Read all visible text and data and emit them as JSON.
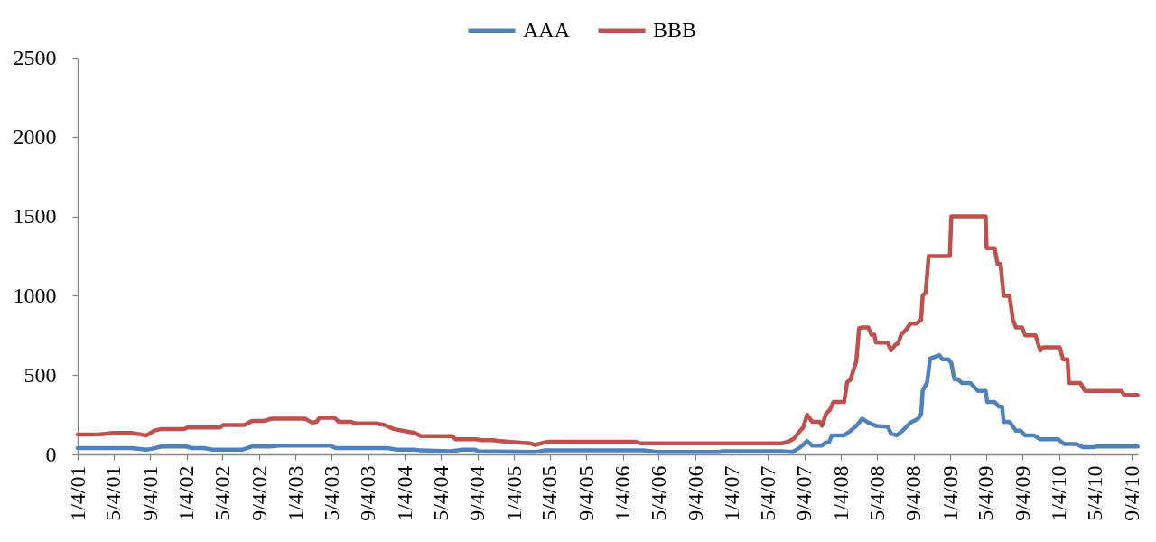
{
  "chart_data": {
    "type": "line",
    "legend": "top",
    "xlim": [
      "2001-01-04",
      "2010-09-25"
    ],
    "ylim": [
      0,
      2500
    ],
    "yticks": [
      0,
      500,
      1000,
      1500,
      2000,
      2500
    ],
    "xticks": [
      {
        "value": "2001-01-04",
        "label": "1/4/01"
      },
      {
        "value": "2001-05-04",
        "label": "5/4/01"
      },
      {
        "value": "2001-09-04",
        "label": "9/4/01"
      },
      {
        "value": "2002-01-04",
        "label": "1/4/02"
      },
      {
        "value": "2002-05-04",
        "label": "5/4/02"
      },
      {
        "value": "2002-09-04",
        "label": "9/4/02"
      },
      {
        "value": "2003-01-04",
        "label": "1/4/03"
      },
      {
        "value": "2003-05-04",
        "label": "5/4/03"
      },
      {
        "value": "2003-09-04",
        "label": "9/4/03"
      },
      {
        "value": "2004-01-04",
        "label": "1/4/04"
      },
      {
        "value": "2004-05-04",
        "label": "5/4/04"
      },
      {
        "value": "2004-09-04",
        "label": "9/4/04"
      },
      {
        "value": "2005-01-04",
        "label": "1/4/05"
      },
      {
        "value": "2005-05-04",
        "label": "5/4/05"
      },
      {
        "value": "2005-09-04",
        "label": "9/4/05"
      },
      {
        "value": "2006-01-04",
        "label": "1/4/06"
      },
      {
        "value": "2006-05-04",
        "label": "5/4/06"
      },
      {
        "value": "2006-09-04",
        "label": "9/4/06"
      },
      {
        "value": "2007-01-04",
        "label": "1/4/07"
      },
      {
        "value": "2007-05-04",
        "label": "5/4/07"
      },
      {
        "value": "2007-09-04",
        "label": "9/4/07"
      },
      {
        "value": "2008-01-04",
        "label": "1/4/08"
      },
      {
        "value": "2008-05-04",
        "label": "5/4/08"
      },
      {
        "value": "2008-09-04",
        "label": "9/4/08"
      },
      {
        "value": "2009-01-04",
        "label": "1/4/09"
      },
      {
        "value": "2009-05-04",
        "label": "5/4/09"
      },
      {
        "value": "2009-09-04",
        "label": "9/4/09"
      },
      {
        "value": "2010-01-04",
        "label": "1/4/10"
      },
      {
        "value": "2010-05-04",
        "label": "5/4/10"
      },
      {
        "value": "2010-09-04",
        "label": "9/4/10"
      }
    ],
    "series": [
      {
        "name": "AAA",
        "color": "#4f81bd",
        "x": [
          "2001-01-04",
          "2001-07-03",
          "2001-08-23",
          "2001-09-08",
          "2001-10-12",
          "2002-01-02",
          "2002-01-22",
          "2002-03-02",
          "2002-04-02",
          "2002-07-11",
          "2002-08-11",
          "2002-10-10",
          "2002-11-10",
          "2003-04-29",
          "2003-05-19",
          "2003-11-08",
          "2003-12-08",
          "2004-02-07",
          "2004-02-28",
          "2004-06-07",
          "2004-07-17",
          "2004-08-27",
          "2004-09-06",
          "2005-03-16",
          "2005-04-15",
          "2006-03-14",
          "2006-05-03",
          "2006-11-22",
          "2006-12-02",
          "2007-06-21",
          "2007-07-26",
          "2007-08-21",
          "2007-09-13",
          "2007-09-30",
          "2007-10-31",
          "2007-11-15",
          "2007-11-25",
          "2007-12-05",
          "2008-01-15",
          "2008-01-30",
          "2008-02-25",
          "2008-03-15",
          "2008-04-05",
          "2008-04-30",
          "2008-06-09",
          "2008-06-20",
          "2008-07-09",
          "2008-07-29",
          "2008-08-24",
          "2008-09-19",
          "2008-09-29",
          "2008-10-04",
          "2008-10-19",
          "2008-10-29",
          "2008-11-29",
          "2008-12-09",
          "2008-12-29",
          "2009-01-08",
          "2009-01-18",
          "2009-01-28",
          "2009-02-13",
          "2009-03-13",
          "2009-04-07",
          "2009-05-03",
          "2009-05-08",
          "2009-06-02",
          "2009-06-17",
          "2009-06-27",
          "2009-07-02",
          "2009-07-22",
          "2009-08-12",
          "2009-08-27",
          "2009-09-12",
          "2009-10-12",
          "2009-11-02",
          "2010-01-01",
          "2010-01-21",
          "2010-03-03",
          "2010-03-26",
          "2010-04-26",
          "2010-05-11",
          "2010-09-24"
        ],
        "values": [
          40,
          40,
          30,
          35,
          50,
          50,
          40,
          40,
          30,
          30,
          50,
          50,
          55,
          55,
          40,
          40,
          30,
          30,
          25,
          20,
          30,
          30,
          20,
          15,
          25,
          25,
          15,
          15,
          20,
          20,
          15,
          45,
          85,
          55,
          55,
          75,
          75,
          120,
          120,
          140,
          180,
          225,
          200,
          180,
          175,
          130,
          120,
          150,
          200,
          225,
          255,
          400,
          455,
          605,
          625,
          600,
          600,
          575,
          475,
          475,
          450,
          450,
          400,
          400,
          330,
          330,
          300,
          300,
          205,
          205,
          150,
          150,
          120,
          120,
          95,
          95,
          65,
          65,
          45,
          45,
          50,
          50
        ]
      },
      {
        "name": "BBB",
        "color": "#c0504d",
        "x": [
          "2001-01-04",
          "2001-03-14",
          "2001-05-03",
          "2001-07-03",
          "2001-08-23",
          "2001-09-18",
          "2001-10-12",
          "2001-12-27",
          "2002-01-07",
          "2002-04-26",
          "2002-05-06",
          "2002-07-16",
          "2002-08-11",
          "2002-09-20",
          "2002-10-15",
          "2003-02-04",
          "2003-02-19",
          "2003-03-01",
          "2003-03-15",
          "2003-03-25",
          "2003-05-14",
          "2003-05-29",
          "2003-07-09",
          "2003-07-24",
          "2003-09-29",
          "2003-10-29",
          "2003-11-28",
          "2004-01-08",
          "2004-02-07",
          "2004-02-28",
          "2004-06-12",
          "2004-06-22",
          "2004-09-01",
          "2004-09-16",
          "2004-10-27",
          "2004-11-11",
          "2004-12-16",
          "2005-01-16",
          "2005-02-26",
          "2005-03-16",
          "2005-04-15",
          "2005-05-05",
          "2006-02-14",
          "2006-03-01",
          "2007-06-21",
          "2007-07-11",
          "2007-07-31",
          "2007-08-21",
          "2007-08-31",
          "2007-09-13",
          "2007-09-30",
          "2007-10-25",
          "2007-11-02",
          "2007-11-15",
          "2007-11-28",
          "2007-12-10",
          "2008-01-15",
          "2008-01-25",
          "2008-02-05",
          "2008-02-25",
          "2008-03-05",
          "2008-03-15",
          "2008-04-05",
          "2008-04-15",
          "2008-04-25",
          "2008-04-30",
          "2008-06-09",
          "2008-06-20",
          "2008-07-04",
          "2008-07-14",
          "2008-07-24",
          "2008-08-09",
          "2008-08-24",
          "2008-09-14",
          "2008-09-29",
          "2008-10-04",
          "2008-10-14",
          "2008-10-24",
          "2009-01-03",
          "2009-01-08",
          "2009-05-03",
          "2009-05-06",
          "2009-06-02",
          "2009-06-12",
          "2009-06-22",
          "2009-07-02",
          "2009-07-22",
          "2009-08-02",
          "2009-08-12",
          "2009-09-02",
          "2009-09-12",
          "2009-10-17",
          "2009-11-02",
          "2009-11-12",
          "2010-01-06",
          "2010-01-17",
          "2010-02-01",
          "2010-02-06",
          "2010-03-16",
          "2010-04-01",
          "2010-08-01",
          "2010-08-10",
          "2010-09-24"
        ],
        "values": [
          125,
          125,
          135,
          135,
          120,
          150,
          160,
          160,
          170,
          170,
          185,
          185,
          210,
          210,
          225,
          225,
          210,
          200,
          205,
          230,
          230,
          205,
          205,
          195,
          195,
          185,
          160,
          145,
          135,
          115,
          115,
          95,
          95,
          90,
          90,
          85,
          80,
          75,
          70,
          60,
          75,
          80,
          80,
          70,
          70,
          80,
          100,
          150,
          170,
          250,
          205,
          205,
          180,
          255,
          280,
          330,
          330,
          455,
          470,
          590,
          795,
          800,
          800,
          755,
          755,
          705,
          705,
          655,
          690,
          700,
          755,
          785,
          825,
          825,
          850,
          1000,
          1020,
          1250,
          1250,
          1500,
          1500,
          1300,
          1300,
          1200,
          1200,
          1000,
          1000,
          850,
          800,
          800,
          750,
          750,
          655,
          675,
          675,
          600,
          600,
          450,
          450,
          400,
          400,
          375,
          375
        ]
      }
    ]
  }
}
